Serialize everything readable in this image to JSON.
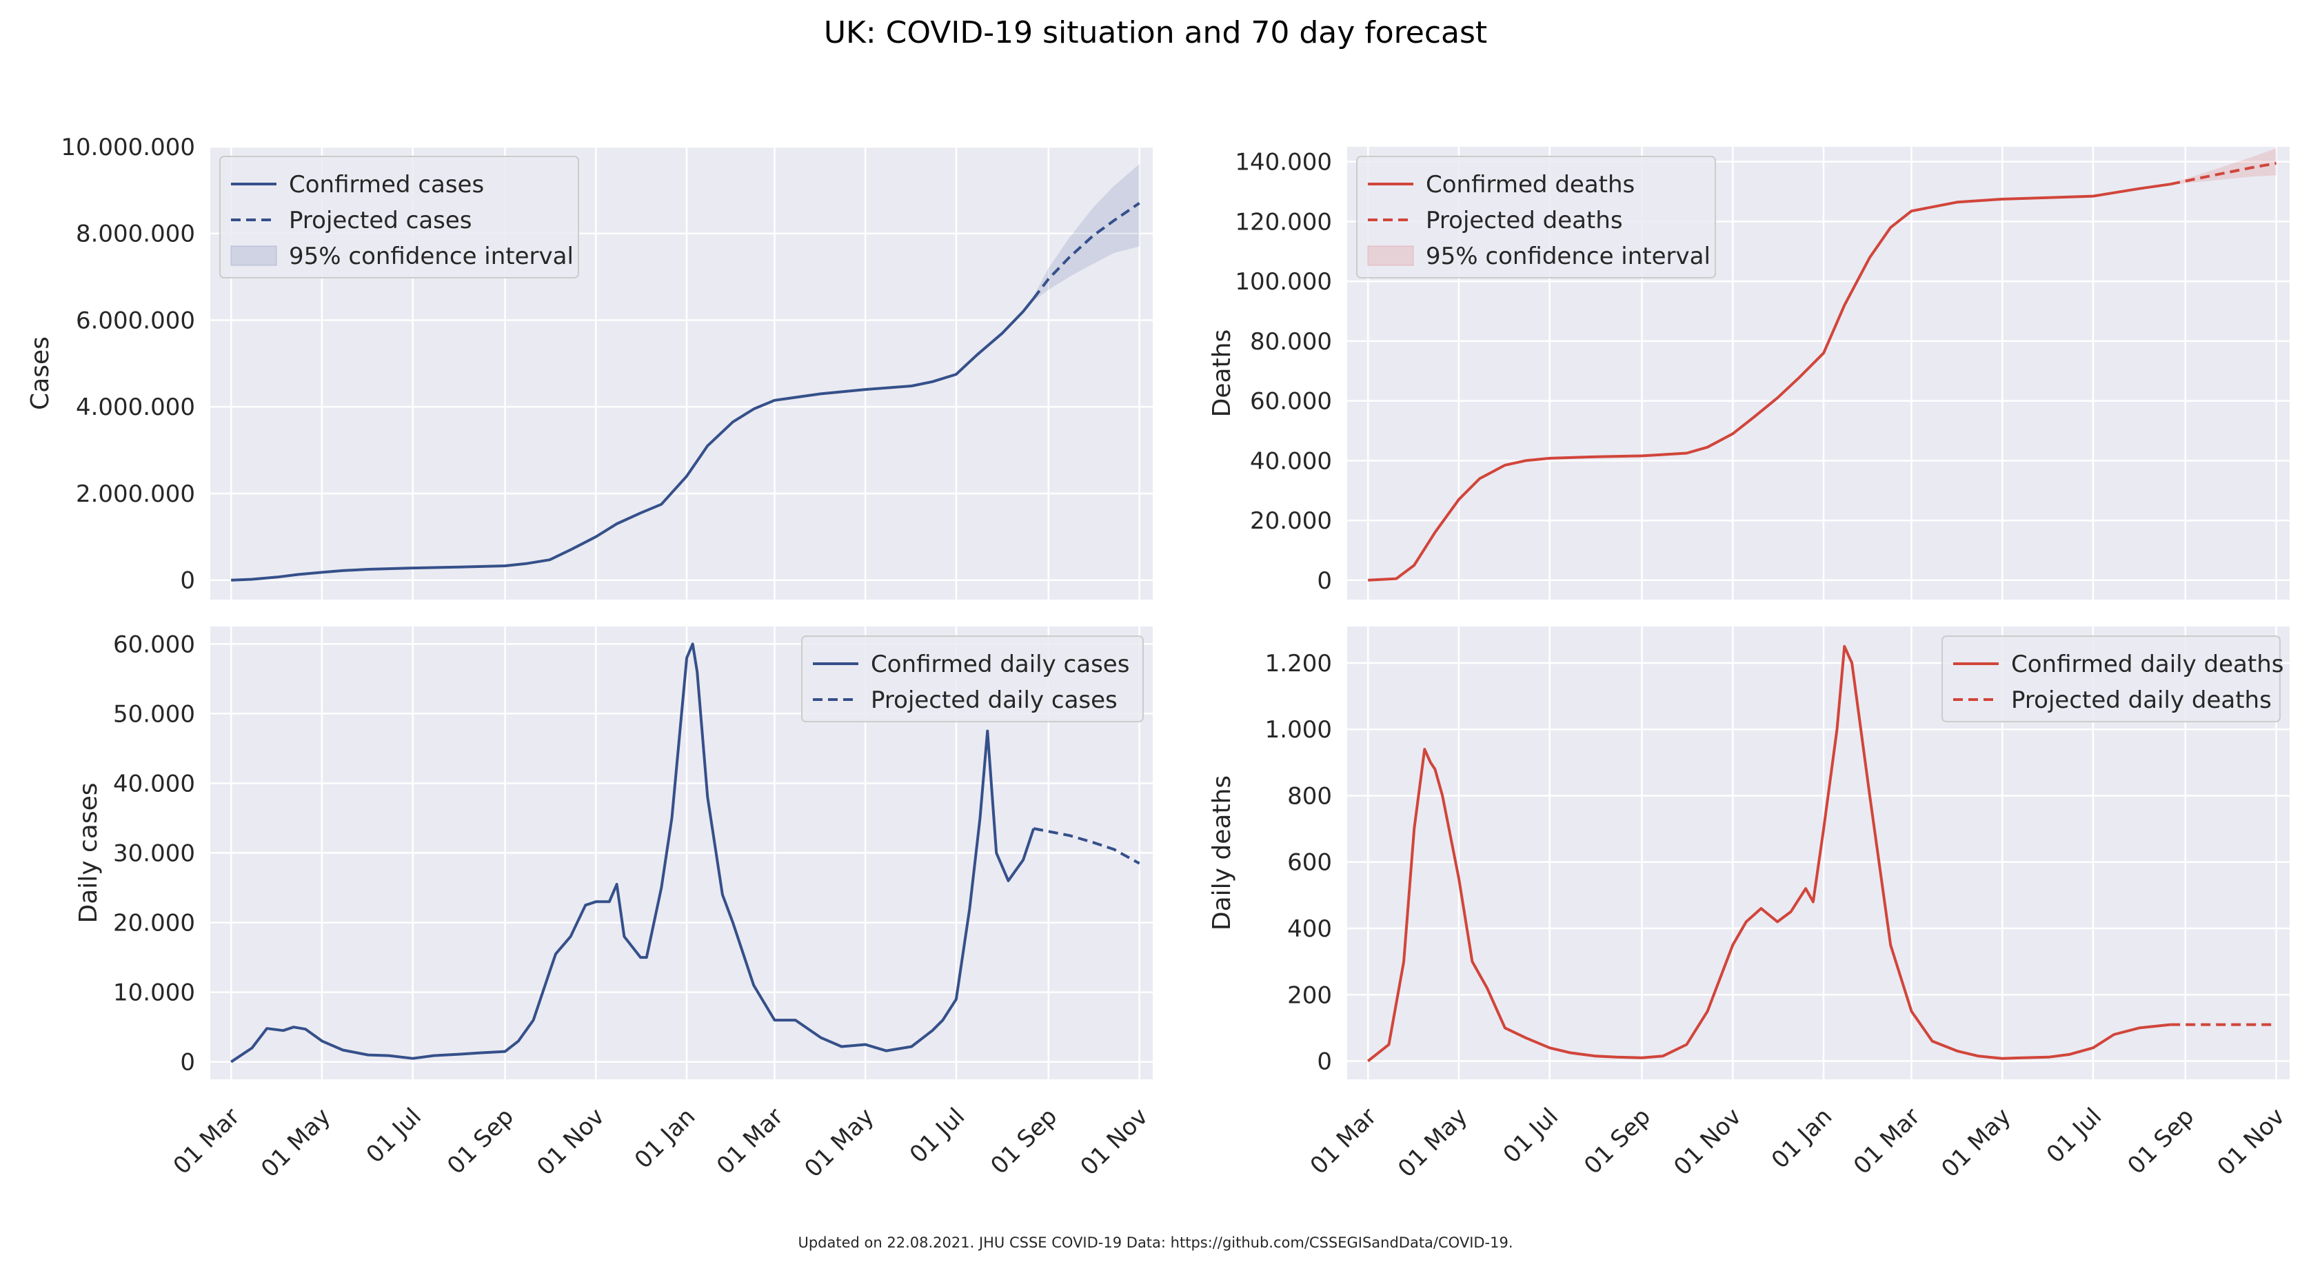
{
  "title": "UK: COVID-19 situation and 70 day forecast",
  "footer": "Updated on 22.08.2021. JHU CSSE COVID-19 Data: https://github.com/CSSEGISandData/COVID-19.",
  "colors": {
    "cases": "#35508a",
    "deaths": "#d1453a",
    "axes_bg": "#eaeaf2",
    "grid": "#ffffff"
  },
  "chart_data": [
    {
      "id": "cases",
      "type": "line",
      "ylabel": "Cases",
      "color": "#35508a",
      "ylim": [
        -450000,
        10000000
      ],
      "yticks": [
        0,
        2000000,
        4000000,
        6000000,
        8000000,
        10000000
      ],
      "ytick_labels": [
        "0",
        "2.000.000",
        "4.000.000",
        "6.000.000",
        "8.000.000",
        "10.000.000"
      ],
      "xticks": [
        "2020-03-01",
        "2020-05-01",
        "2020-07-01",
        "2020-09-01",
        "2020-11-01",
        "2021-01-01",
        "2021-03-01",
        "2021-05-01",
        "2021-07-01",
        "2021-09-01",
        "2021-11-01"
      ],
      "xlim": [
        "2020-02-16",
        "2021-11-10"
      ],
      "legend": {
        "placement": "upper-left",
        "entries": [
          "Confirmed cases",
          "Projected cases",
          "95% confidence interval"
        ]
      },
      "series": [
        {
          "name": "Confirmed cases",
          "style": "solid",
          "x": [
            "2020-03-01",
            "2020-03-15",
            "2020-04-01",
            "2020-04-15",
            "2020-05-01",
            "2020-05-15",
            "2020-06-01",
            "2020-07-01",
            "2020-08-01",
            "2020-09-01",
            "2020-09-15",
            "2020-10-01",
            "2020-10-15",
            "2020-11-01",
            "2020-11-15",
            "2020-12-01",
            "2020-12-15",
            "2021-01-01",
            "2021-01-15",
            "2021-02-01",
            "2021-02-15",
            "2021-03-01",
            "2021-04-01",
            "2021-05-01",
            "2021-06-01",
            "2021-06-15",
            "2021-07-01",
            "2021-07-15",
            "2021-08-01",
            "2021-08-15",
            "2021-08-22"
          ],
          "y": [
            0,
            20000,
            70000,
            130000,
            180000,
            220000,
            250000,
            280000,
            300000,
            330000,
            380000,
            470000,
            700000,
            1000000,
            1300000,
            1550000,
            1750000,
            2400000,
            3100000,
            3650000,
            3950000,
            4150000,
            4300000,
            4400000,
            4480000,
            4580000,
            4750000,
            5200000,
            5700000,
            6200000,
            6500000
          ]
        },
        {
          "name": "Projected cases",
          "style": "dashed",
          "x": [
            "2021-08-22",
            "2021-09-01",
            "2021-09-15",
            "2021-10-01",
            "2021-10-15",
            "2021-11-01"
          ],
          "y": [
            6500000,
            6950000,
            7450000,
            7950000,
            8300000,
            8700000
          ]
        }
      ],
      "confidence_interval": {
        "name": "95% confidence interval",
        "x": [
          "2021-08-22",
          "2021-09-01",
          "2021-09-15",
          "2021-10-01",
          "2021-10-15",
          "2021-11-01"
        ],
        "lower": [
          6450000,
          6700000,
          7000000,
          7300000,
          7550000,
          7700000
        ],
        "upper": [
          6550000,
          7200000,
          7900000,
          8600000,
          9100000,
          9600000
        ]
      }
    },
    {
      "id": "deaths",
      "type": "line",
      "ylabel": "Deaths",
      "color": "#d1453a",
      "ylim": [
        -6500,
        145000
      ],
      "yticks": [
        0,
        20000,
        40000,
        60000,
        80000,
        100000,
        120000,
        140000
      ],
      "ytick_labels": [
        "0",
        "20.000",
        "40.000",
        "60.000",
        "80.000",
        "100.000",
        "120.000",
        "140.000"
      ],
      "xticks": [
        "2020-03-01",
        "2020-05-01",
        "2020-07-01",
        "2020-09-01",
        "2020-11-01",
        "2021-01-01",
        "2021-03-01",
        "2021-05-01",
        "2021-07-01",
        "2021-09-01",
        "2021-11-01"
      ],
      "xlim": [
        "2020-02-16",
        "2021-11-10"
      ],
      "legend": {
        "placement": "upper-left",
        "entries": [
          "Confirmed deaths",
          "Projected deaths",
          "95% confidence interval"
        ]
      },
      "series": [
        {
          "name": "Confirmed deaths",
          "style": "solid",
          "x": [
            "2020-03-01",
            "2020-03-20",
            "2020-04-01",
            "2020-04-15",
            "2020-05-01",
            "2020-05-15",
            "2020-06-01",
            "2020-06-15",
            "2020-07-01",
            "2020-08-01",
            "2020-09-01",
            "2020-10-01",
            "2020-10-15",
            "2020-11-01",
            "2020-11-15",
            "2020-12-01",
            "2020-12-15",
            "2021-01-01",
            "2021-01-15",
            "2021-02-01",
            "2021-02-15",
            "2021-03-01",
            "2021-04-01",
            "2021-05-01",
            "2021-06-01",
            "2021-07-01",
            "2021-08-01",
            "2021-08-22"
          ],
          "y": [
            0,
            500,
            5000,
            16000,
            27000,
            34000,
            38500,
            40000,
            40800,
            41300,
            41600,
            42500,
            44500,
            49000,
            54500,
            61000,
            67500,
            76000,
            92000,
            108000,
            118000,
            123500,
            126500,
            127500,
            128000,
            128500,
            131000,
            132500
          ]
        },
        {
          "name": "Projected deaths",
          "style": "dashed",
          "x": [
            "2021-08-22",
            "2021-09-15",
            "2021-10-15",
            "2021-11-01"
          ],
          "y": [
            132500,
            135000,
            138000,
            139500
          ]
        }
      ],
      "confidence_interval": {
        "name": "95% confidence interval",
        "x": [
          "2021-08-22",
          "2021-09-15",
          "2021-10-15",
          "2021-11-01"
        ],
        "lower": [
          132300,
          133500,
          135000,
          135500
        ],
        "upper": [
          132700,
          136500,
          141500,
          144500
        ]
      }
    },
    {
      "id": "daily_cases",
      "type": "line",
      "ylabel": "Daily cases",
      "color": "#35508a",
      "ylim": [
        -2500,
        62500
      ],
      "yticks": [
        0,
        10000,
        20000,
        30000,
        40000,
        50000,
        60000
      ],
      "ytick_labels": [
        "0",
        "10.000",
        "20.000",
        "30.000",
        "40.000",
        "50.000",
        "60.000"
      ],
      "xticks": [
        "2020-03-01",
        "2020-05-01",
        "2020-07-01",
        "2020-09-01",
        "2020-11-01",
        "2021-01-01",
        "2021-03-01",
        "2021-05-01",
        "2021-07-01",
        "2021-09-01",
        "2021-11-01"
      ],
      "xlim": [
        "2020-02-16",
        "2021-11-10"
      ],
      "legend": {
        "placement": "upper-right",
        "entries": [
          "Confirmed daily cases",
          "Projected daily cases"
        ]
      },
      "series": [
        {
          "name": "Confirmed daily cases",
          "style": "solid",
          "x": [
            "2020-03-01",
            "2020-03-15",
            "2020-03-25",
            "2020-04-05",
            "2020-04-12",
            "2020-04-20",
            "2020-05-01",
            "2020-05-15",
            "2020-06-01",
            "2020-06-15",
            "2020-07-01",
            "2020-07-15",
            "2020-08-01",
            "2020-08-15",
            "2020-09-01",
            "2020-09-10",
            "2020-09-20",
            "2020-10-01",
            "2020-10-05",
            "2020-10-15",
            "2020-10-25",
            "2020-11-01",
            "2020-11-10",
            "2020-11-15",
            "2020-11-20",
            "2020-12-01",
            "2020-12-05",
            "2020-12-15",
            "2020-12-22",
            "2021-01-01",
            "2021-01-05",
            "2021-01-08",
            "2021-01-15",
            "2021-01-25",
            "2021-02-01",
            "2021-02-15",
            "2021-03-01",
            "2021-03-15",
            "2021-04-01",
            "2021-04-15",
            "2021-05-01",
            "2021-05-15",
            "2021-06-01",
            "2021-06-15",
            "2021-06-22",
            "2021-07-01",
            "2021-07-10",
            "2021-07-17",
            "2021-07-22",
            "2021-07-28",
            "2021-08-05",
            "2021-08-15",
            "2021-08-22"
          ],
          "y": [
            0,
            2000,
            4800,
            4500,
            5000,
            4700,
            3000,
            1700,
            1000,
            900,
            500,
            900,
            1100,
            1300,
            1500,
            3000,
            6000,
            13000,
            15500,
            18000,
            22500,
            23000,
            23000,
            25500,
            18000,
            15000,
            15000,
            25000,
            35000,
            58000,
            60000,
            56000,
            38000,
            24000,
            20000,
            11000,
            6000,
            6000,
            3500,
            2200,
            2500,
            1600,
            2200,
            4500,
            6000,
            9000,
            22000,
            35000,
            47500,
            30000,
            26000,
            29000,
            33500
          ]
        },
        {
          "name": "Projected daily cases",
          "style": "dashed",
          "x": [
            "2021-08-22",
            "2021-09-15",
            "2021-10-01",
            "2021-10-15",
            "2021-11-01"
          ],
          "y": [
            33500,
            32500,
            31500,
            30500,
            28500
          ]
        }
      ]
    },
    {
      "id": "daily_deaths",
      "type": "line",
      "ylabel": "Daily deaths",
      "color": "#d1453a",
      "ylim": [
        -55,
        1310
      ],
      "yticks": [
        0,
        200,
        400,
        600,
        800,
        1000,
        1200
      ],
      "ytick_labels": [
        "0",
        "200",
        "400",
        "600",
        "800",
        "1.000",
        "1.200"
      ],
      "xticks": [
        "2020-03-01",
        "2020-05-01",
        "2020-07-01",
        "2020-09-01",
        "2020-11-01",
        "2021-01-01",
        "2021-03-01",
        "2021-05-01",
        "2021-07-01",
        "2021-09-01",
        "2021-11-01"
      ],
      "xlim": [
        "2020-02-16",
        "2021-11-10"
      ],
      "legend": {
        "placement": "upper-right",
        "entries": [
          "Confirmed daily deaths",
          "Projected daily deaths"
        ]
      },
      "series": [
        {
          "name": "Confirmed daily deaths",
          "style": "solid",
          "x": [
            "2020-03-01",
            "2020-03-15",
            "2020-03-25",
            "2020-04-01",
            "2020-04-08",
            "2020-04-12",
            "2020-04-15",
            "2020-04-20",
            "2020-05-01",
            "2020-05-10",
            "2020-05-20",
            "2020-06-01",
            "2020-06-15",
            "2020-07-01",
            "2020-07-15",
            "2020-08-01",
            "2020-08-15",
            "2020-09-01",
            "2020-09-15",
            "2020-10-01",
            "2020-10-15",
            "2020-11-01",
            "2020-11-10",
            "2020-11-20",
            "2020-12-01",
            "2020-12-10",
            "2020-12-20",
            "2020-12-25",
            "2021-01-01",
            "2021-01-10",
            "2021-01-15",
            "2021-01-20",
            "2021-02-01",
            "2021-02-15",
            "2021-03-01",
            "2021-03-15",
            "2021-04-01",
            "2021-04-15",
            "2021-05-01",
            "2021-05-15",
            "2021-06-01",
            "2021-06-15",
            "2021-07-01",
            "2021-07-15",
            "2021-08-01",
            "2021-08-22"
          ],
          "y": [
            0,
            50,
            300,
            700,
            940,
            900,
            880,
            800,
            550,
            300,
            220,
            100,
            70,
            40,
            25,
            15,
            12,
            10,
            15,
            50,
            150,
            350,
            420,
            460,
            420,
            450,
            520,
            480,
            700,
            1000,
            1250,
            1200,
            800,
            350,
            150,
            60,
            30,
            15,
            8,
            10,
            12,
            20,
            40,
            80,
            100,
            110
          ]
        },
        {
          "name": "Projected daily deaths",
          "style": "dashed",
          "x": [
            "2021-08-22",
            "2021-11-01"
          ],
          "y": [
            110,
            110
          ]
        }
      ]
    }
  ]
}
